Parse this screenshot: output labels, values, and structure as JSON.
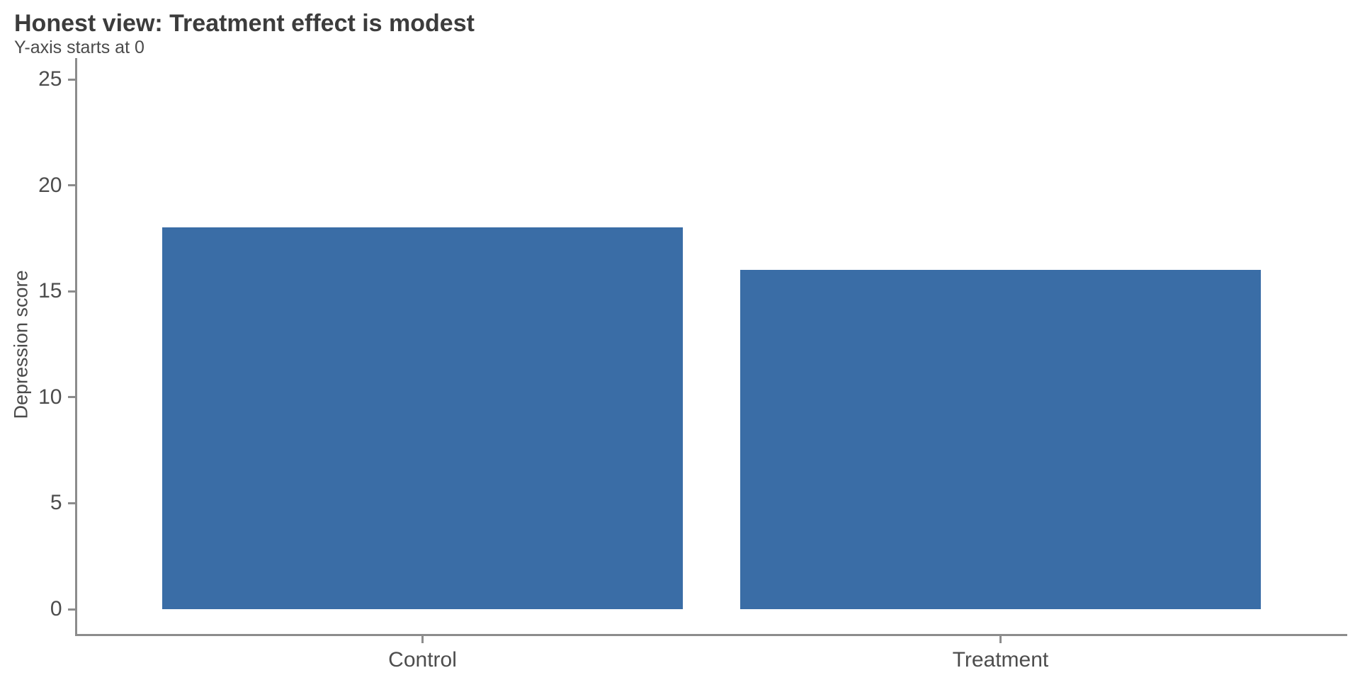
{
  "header": {
    "title": "Honest view: Treatment effect is modest",
    "subtitle": "Y-axis starts at 0"
  },
  "chart_data": {
    "type": "bar",
    "title": "Honest view: Treatment effect is modest",
    "subtitle": "Y-axis starts at 0",
    "categories": [
      "Control",
      "Treatment"
    ],
    "values": [
      18,
      16
    ],
    "xlabel": "",
    "ylabel": "Depression score",
    "ylim": [
      0,
      25
    ],
    "yticks": [
      0,
      5,
      10,
      15,
      20,
      25
    ],
    "grid": false,
    "legend_position": "none",
    "bar_color": "#3a6da6",
    "axis_color": "#8c8c8c",
    "tick_text_color": "#4d4d4d",
    "title_color": "#3c3c3c",
    "background_color": "#ffffff"
  }
}
